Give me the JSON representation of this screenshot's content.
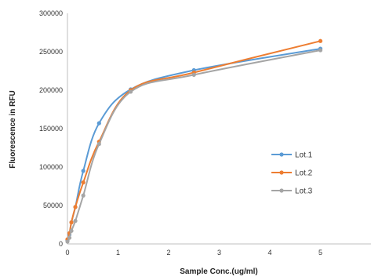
{
  "chart_data": {
    "type": "line",
    "title": "",
    "xlabel": "Sample Conc.(ug/ml)",
    "ylabel": "Fluorescence in RFU",
    "xlim": [
      0,
      6
    ],
    "ylim": [
      0,
      300000
    ],
    "x_ticks": [
      "0",
      "1",
      "2",
      "3",
      "4",
      "5"
    ],
    "y_ticks": [
      "0",
      "50000",
      "100000",
      "150000",
      "200000",
      "250000",
      "300000"
    ],
    "grid": false,
    "smooth": true,
    "legend_position": "right",
    "series": [
      {
        "name": "Lot.1",
        "color": "#5B9BD5",
        "x": [
          0,
          0.039,
          0.078,
          0.156,
          0.3125,
          0.625,
          1.25,
          2.5,
          5
        ],
        "y": [
          5000,
          12000,
          28000,
          48000,
          95000,
          157000,
          201000,
          226000,
          254000
        ]
      },
      {
        "name": "Lot.2",
        "color": "#ED7D31",
        "x": [
          0,
          0.039,
          0.078,
          0.156,
          0.3125,
          0.625,
          1.25,
          2.5,
          5
        ],
        "y": [
          6000,
          14000,
          28000,
          48000,
          80000,
          133000,
          200000,
          223000,
          264000
        ]
      },
      {
        "name": "Lot.3",
        "color": "#A5A5A5",
        "x": [
          0,
          0.039,
          0.078,
          0.156,
          0.3125,
          0.625,
          1.25,
          2.5,
          5
        ],
        "y": [
          3000,
          8000,
          17000,
          30000,
          63000,
          130000,
          198000,
          220000,
          252000
        ]
      }
    ]
  }
}
